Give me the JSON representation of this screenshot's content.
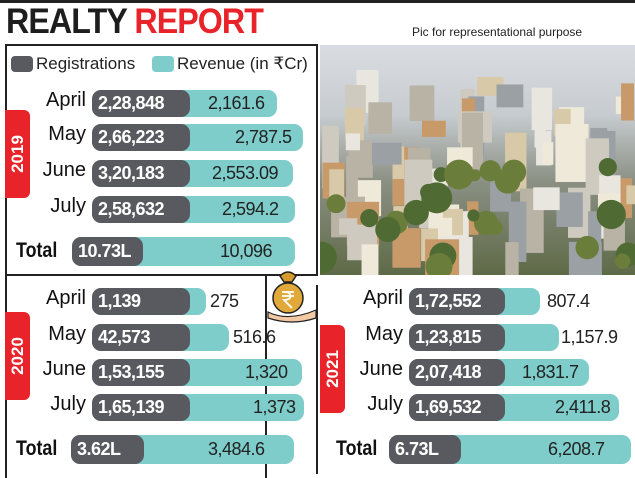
{
  "title": {
    "part1": "REALTY",
    "part2": "REPORT"
  },
  "caption": "Pic for representational purpose",
  "colors": {
    "registrations": "#595a5f",
    "revenue": "#7ecdca",
    "accent": "#e8232a"
  },
  "chart_data": {
    "type": "bar",
    "title": "REALTY REPORT",
    "legend": [
      "Registrations",
      "Revenue (in ₹Cr)"
    ],
    "panels": [
      {
        "year": "2019",
        "months": [
          "April",
          "May",
          "June",
          "July"
        ],
        "registrations": [
          "2,28,848",
          "2,66,223",
          "3,20,183",
          "2,58,632"
        ],
        "revenue": [
          "2,161.6",
          "2,787.5",
          "2,553.09",
          "2,594.2"
        ],
        "total_label": "Total",
        "total_registrations": "10.73L",
        "total_revenue": "10,096"
      },
      {
        "year": "2020",
        "months": [
          "April",
          "May",
          "June",
          "July"
        ],
        "registrations": [
          "1,139",
          "42,573",
          "1,53,155",
          "1,65,139"
        ],
        "revenue": [
          "275",
          "516.6",
          "1,320",
          "1,373"
        ],
        "total_label": "Total",
        "total_registrations": "3.62L",
        "total_revenue": "3,484.6"
      },
      {
        "year": "2021",
        "months": [
          "April",
          "May",
          "June",
          "July"
        ],
        "registrations": [
          "1,72,552",
          "1,23,815",
          "2,07,418",
          "1,69,532"
        ],
        "revenue": [
          "807.4",
          "1,157.9",
          "1,831.7",
          "2,411.8"
        ],
        "total_label": "Total",
        "total_registrations": "6.73L",
        "total_revenue": "6,208.7"
      }
    ]
  }
}
